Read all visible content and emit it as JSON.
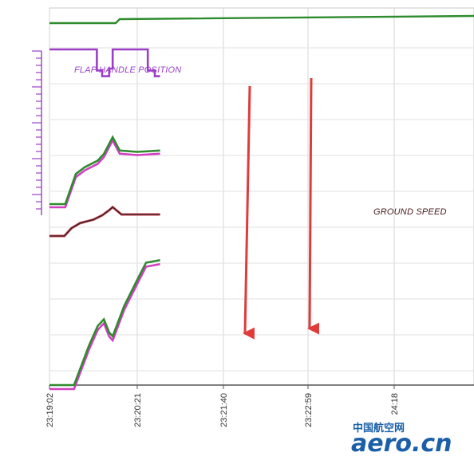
{
  "chart_data": {
    "type": "line",
    "title": "",
    "xlabel": "",
    "ylabel": "",
    "x_tick_labels": [
      "23:19:02",
      "23:20:21",
      "23:21:40",
      "23:22:59",
      "24:18"
    ],
    "grid": true,
    "series": [
      {
        "name": "FLAP HANDLE POSITION",
        "color": "#9b3fc8",
        "x": [
          0,
          0.5,
          0.54,
          0.54,
          0.6,
          0.6,
          0.68,
          0.68,
          0.72,
          0.72,
          1.12,
          1.12,
          1.2,
          1.2,
          1.26
        ],
        "y": [
          1,
          1,
          1,
          0.45,
          0.45,
          0.3,
          0.3,
          0.5,
          0.5,
          1,
          1,
          0.45,
          0.45,
          0.3,
          0.3
        ]
      },
      {
        "name": "GROUND SPEED",
        "color": "#4a1a1a",
        "x": [
          0,
          0.17,
          0.25,
          0.35,
          0.5,
          0.6,
          0.68,
          0.72,
          0.82,
          1.0,
          1.26
        ],
        "y": [
          0.0,
          0.0,
          0.18,
          0.3,
          0.38,
          0.48,
          0.6,
          0.67,
          0.5,
          0.5,
          0.5
        ]
      },
      {
        "color": "#2e8b2e",
        "x": [
          0,
          0.18,
          0.3,
          0.4,
          0.55,
          0.62,
          0.72,
          0.8,
          1.0,
          1.26
        ],
        "y": [
          0.0,
          0.0,
          0.45,
          0.55,
          0.65,
          0.75,
          1.0,
          0.8,
          0.78,
          0.8
        ]
      },
      {
        "color": "#2e8b2e",
        "x": [
          0,
          0.28,
          0.45,
          0.55,
          0.62,
          0.68,
          0.72,
          0.85,
          1.0,
          1.1,
          1.26
        ],
        "y": [
          0.0,
          0.0,
          0.3,
          0.45,
          0.5,
          0.4,
          0.37,
          0.6,
          0.8,
          0.93,
          0.95
        ]
      }
    ]
  },
  "watermark": {
    "chinese": "中国航空网",
    "latin": "aero.cn",
    "color": "#1a5fa8"
  }
}
